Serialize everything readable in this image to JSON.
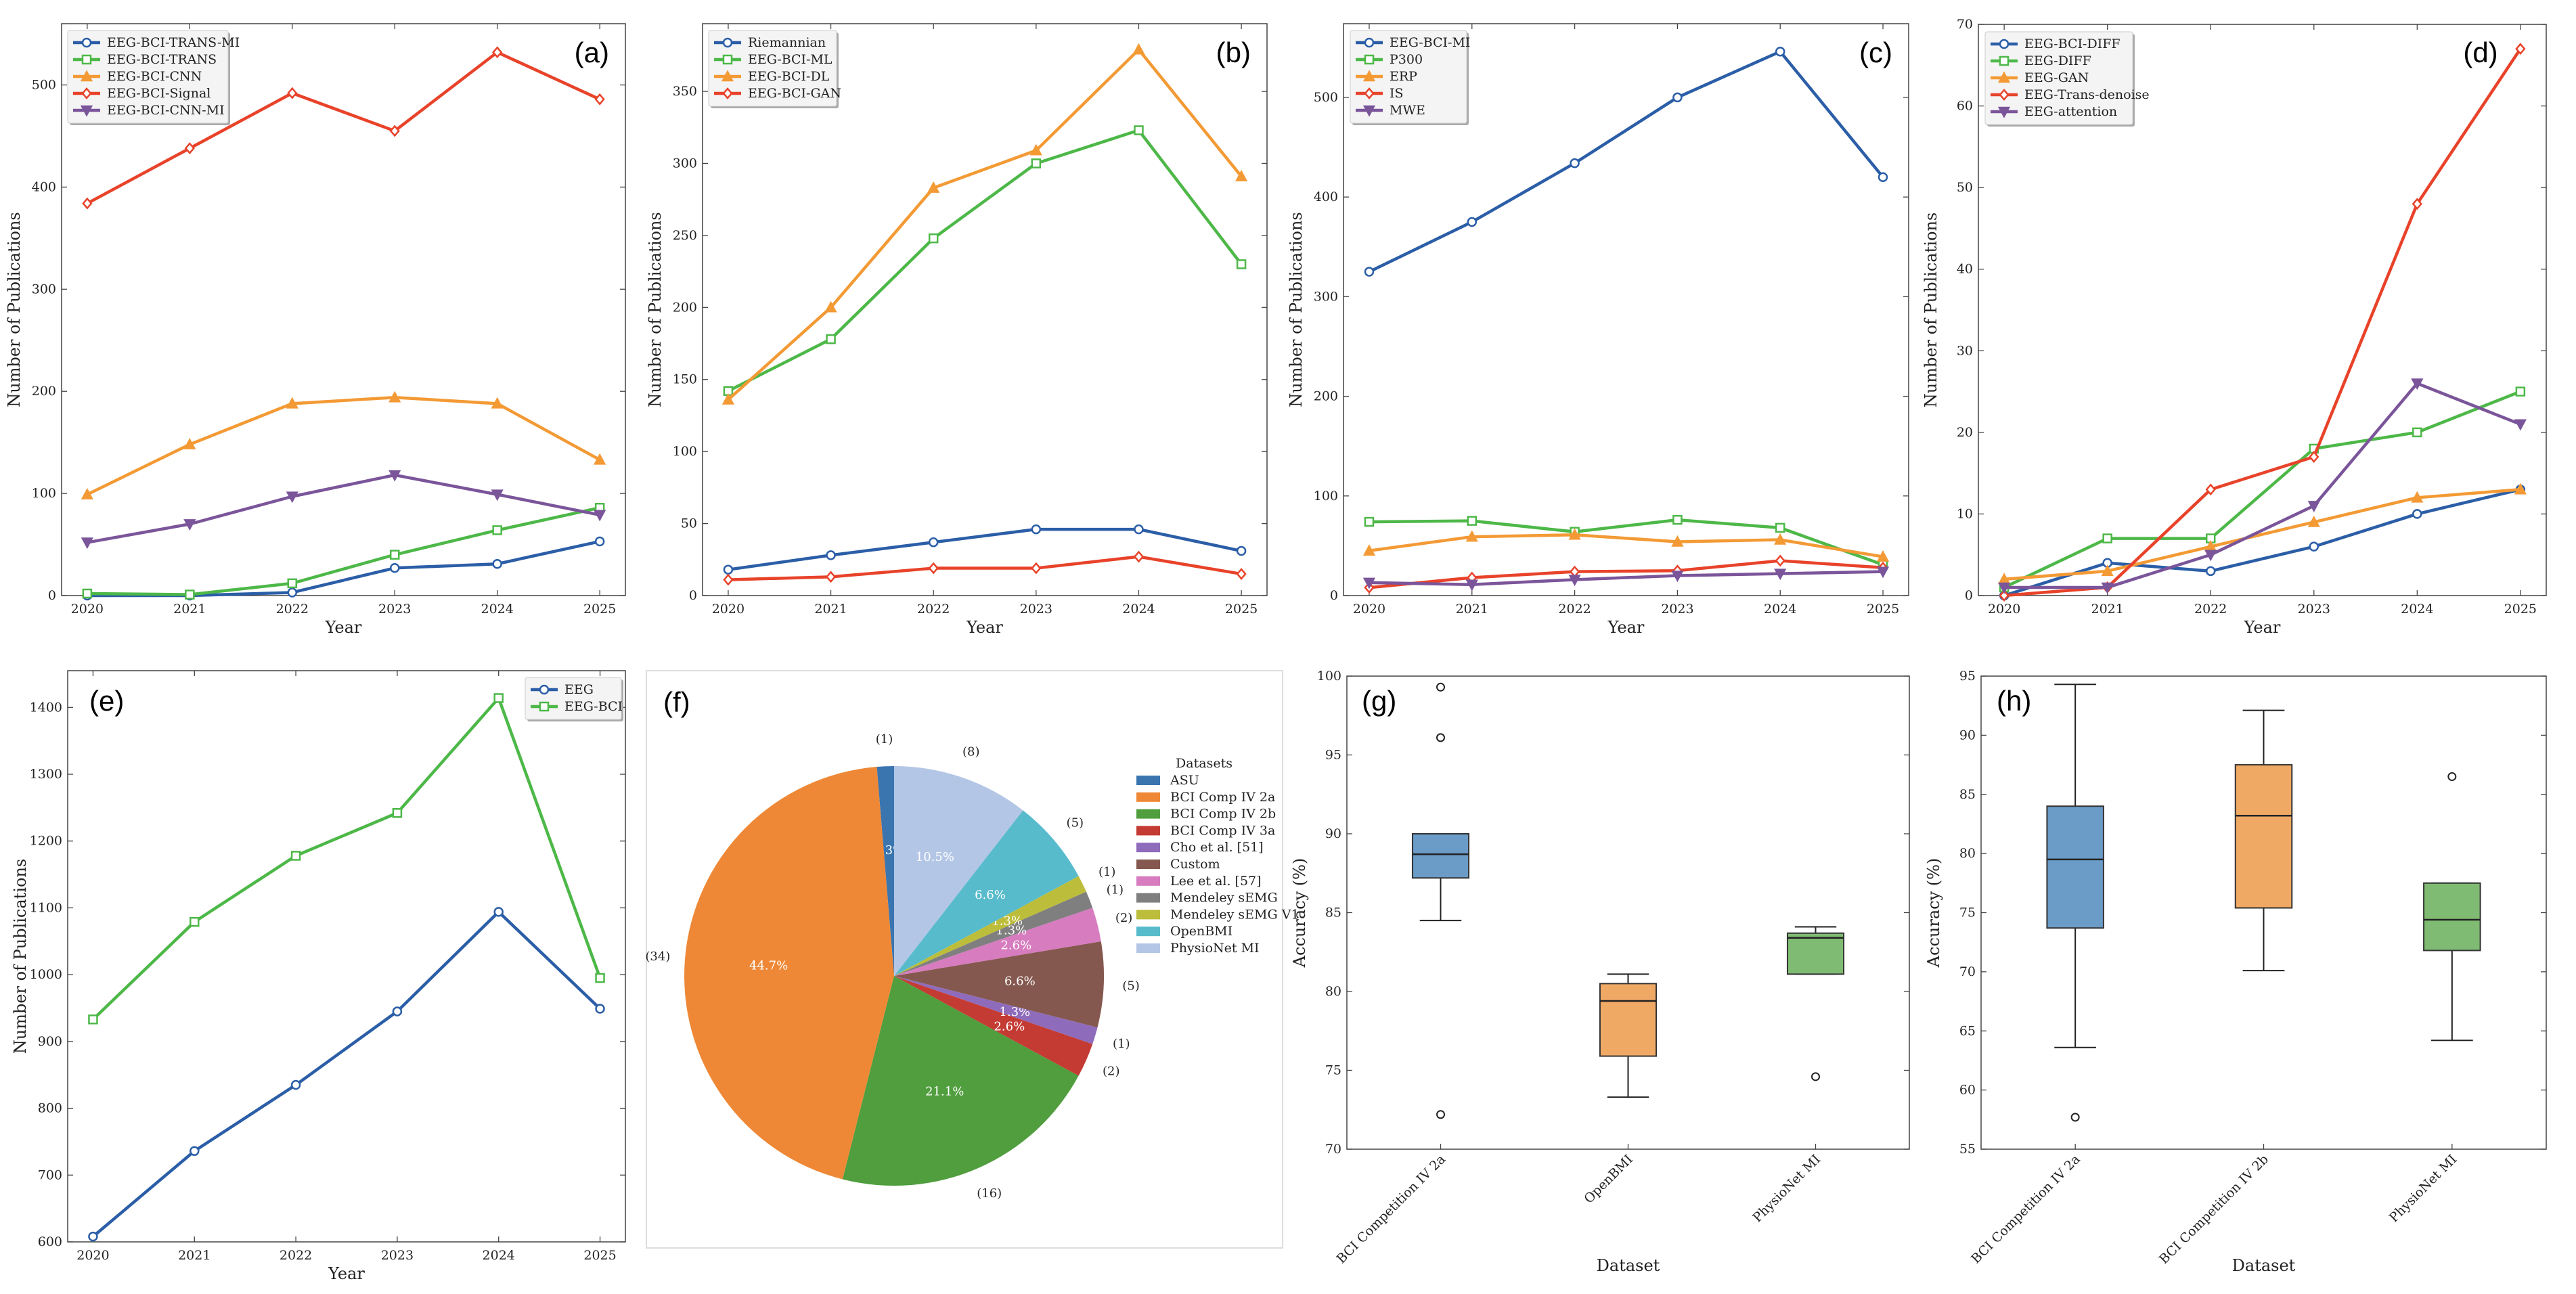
{
  "chart_data": [
    {
      "type": "line",
      "panel_label": "(a)",
      "xlabel": "Year",
      "ylabel": "Number of Publications",
      "x": [
        2020,
        2021,
        2022,
        2023,
        2024,
        2025
      ],
      "xlim": [
        2019.75,
        2025.25
      ],
      "ylim": [
        0,
        560
      ],
      "yticks": [
        0,
        100,
        200,
        300,
        400,
        500
      ],
      "legend": "top-left",
      "series": [
        {
          "name": "EEG-BCI-TRANS-MI",
          "color": "#2b5ea7",
          "marker": "circle",
          "values": [
            0,
            0,
            3,
            27,
            31,
            53
          ]
        },
        {
          "name": "EEG-BCI-TRANS",
          "color": "#4db848",
          "marker": "square",
          "values": [
            2,
            1,
            12,
            40,
            64,
            86
          ]
        },
        {
          "name": "EEG-BCI-CNN",
          "color": "#f39a35",
          "marker": "triangle-up",
          "values": [
            99,
            148,
            188,
            194,
            188,
            133
          ]
        },
        {
          "name": "EEG-BCI-Signal",
          "color": "#e8432a",
          "marker": "diamond",
          "values": [
            384,
            438,
            492,
            455,
            532,
            486
          ]
        },
        {
          "name": "EEG-BCI-CNN-MI",
          "color": "#7b559a",
          "marker": "triangle-down",
          "values": [
            52,
            70,
            97,
            118,
            99,
            79
          ]
        }
      ]
    },
    {
      "type": "line",
      "panel_label": "(b)",
      "xlabel": "Year",
      "ylabel": "Number of Publications",
      "x": [
        2020,
        2021,
        2022,
        2023,
        2024,
        2025
      ],
      "xlim": [
        2019.75,
        2025.25
      ],
      "ylim": [
        0,
        397
      ],
      "yticks": [
        0,
        50,
        100,
        150,
        200,
        250,
        300,
        350
      ],
      "legend": "top-left",
      "series": [
        {
          "name": "Riemannian",
          "color": "#2b5ea7",
          "marker": "circle",
          "values": [
            18,
            28,
            37,
            46,
            46,
            31
          ]
        },
        {
          "name": "EEG-BCI-ML",
          "color": "#4db848",
          "marker": "square",
          "values": [
            142,
            178,
            248,
            300,
            323,
            230
          ]
        },
        {
          "name": "EEG-BCI-DL",
          "color": "#f39a35",
          "marker": "triangle-up",
          "values": [
            136,
            200,
            283,
            309,
            379,
            291
          ]
        },
        {
          "name": "EEG-BCI-GAN",
          "color": "#e8432a",
          "marker": "diamond",
          "values": [
            11,
            13,
            19,
            19,
            27,
            15
          ]
        }
      ]
    },
    {
      "type": "line",
      "panel_label": "(c)",
      "xlabel": "Year",
      "ylabel": "Number of Publications",
      "x": [
        2020,
        2021,
        2022,
        2023,
        2024,
        2025
      ],
      "xlim": [
        2019.75,
        2025.25
      ],
      "ylim": [
        0,
        574
      ],
      "yticks": [
        0,
        100,
        200,
        300,
        400,
        500
      ],
      "legend": "top-left",
      "series": [
        {
          "name": "EEG-BCI-MI",
          "color": "#2b5ea7",
          "marker": "circle",
          "values": [
            325,
            375,
            434,
            500,
            546,
            420
          ]
        },
        {
          "name": "P300",
          "color": "#4db848",
          "marker": "square",
          "values": [
            74,
            75,
            64,
            76,
            68,
            31
          ]
        },
        {
          "name": "ERP",
          "color": "#f39a35",
          "marker": "triangle-up",
          "values": [
            45,
            59,
            61,
            54,
            56,
            39
          ]
        },
        {
          "name": "IS",
          "color": "#e8432a",
          "marker": "diamond",
          "values": [
            8,
            18,
            24,
            25,
            35,
            28
          ]
        },
        {
          "name": "MWE",
          "color": "#7b559a",
          "marker": "triangle-down",
          "values": [
            13,
            11,
            16,
            20,
            22,
            24
          ]
        }
      ]
    },
    {
      "type": "line",
      "panel_label": "(d)",
      "xlabel": "Year",
      "ylabel": "Number of Publications",
      "x": [
        2020,
        2021,
        2022,
        2023,
        2024,
        2025
      ],
      "xlim": [
        2019.75,
        2025.25
      ],
      "ylim": [
        0,
        70
      ],
      "yticks": [
        0,
        10,
        20,
        30,
        40,
        50,
        60,
        70
      ],
      "legend": "top-left",
      "series": [
        {
          "name": "EEG-BCI-DIFF",
          "color": "#2b5ea7",
          "marker": "circle",
          "values": [
            0,
            4,
            3,
            6,
            10,
            13
          ]
        },
        {
          "name": "EEG-DIFF",
          "color": "#4db848",
          "marker": "square",
          "values": [
            1,
            7,
            7,
            18,
            20,
            25
          ]
        },
        {
          "name": "EEG-GAN",
          "color": "#f39a35",
          "marker": "triangle-up",
          "values": [
            2,
            3,
            6,
            9,
            12,
            13
          ]
        },
        {
          "name": "EEG-Trans-denoise",
          "color": "#e8432a",
          "marker": "diamond",
          "values": [
            0,
            1,
            13,
            17,
            48,
            67
          ]
        },
        {
          "name": "EEG-attention",
          "color": "#7b559a",
          "marker": "triangle-down",
          "values": [
            1,
            1,
            5,
            11,
            26,
            21
          ]
        }
      ]
    },
    {
      "type": "line",
      "panel_label": "(e)",
      "xlabel": "Year",
      "ylabel": "Number of Publications",
      "x": [
        2020,
        2021,
        2022,
        2023,
        2024,
        2025
      ],
      "xlim": [
        2019.75,
        2025.25
      ],
      "ylim": [
        600,
        1455
      ],
      "yticks": [
        600,
        700,
        800,
        900,
        1000,
        1100,
        1200,
        1300,
        1400
      ],
      "legend": "top-right",
      "series": [
        {
          "name": "EEG",
          "color": "#2b5ea7",
          "marker": "circle",
          "values": [
            608,
            736,
            835,
            945,
            1094,
            949
          ]
        },
        {
          "name": "EEG-BCI",
          "color": "#4db848",
          "marker": "square",
          "values": [
            933,
            1079,
            1178,
            1242,
            1414,
            995
          ]
        }
      ]
    },
    {
      "type": "pie",
      "panel_label": "(f)",
      "legend_title": "Datasets",
      "legend": "right",
      "start_angle": 90,
      "direction": "counterclockwise",
      "categories": [
        "ASU",
        "BCI Comp IV 2a",
        "BCI Comp IV 2b",
        "BCI Comp IV 3a",
        "Cho et al. [51]",
        "Custom",
        "Lee et al. [57]",
        "Mendeley sEMG",
        "Mendeley sEMG V1",
        "OpenBMI",
        "PhysioNet MI"
      ],
      "values": [
        1,
        34,
        16,
        2,
        1,
        5,
        2,
        1,
        1,
        5,
        8
      ],
      "pct_labels": [
        "1.3%",
        "44.7%",
        "21.1%",
        "2.6%",
        "1.3%",
        "6.6%",
        "2.6%",
        "1.3%",
        "1.3%",
        "6.6%",
        "10.5%"
      ],
      "count_labels": [
        "(1)",
        "(34)",
        "(16)",
        "(2)",
        "(1)",
        "(5)",
        "(2)",
        "(1)",
        "(1)",
        "(5)",
        "(8)"
      ],
      "colors": [
        "#3a75b0",
        "#ee8836",
        "#509e3e",
        "#c43b33",
        "#8f6bbb",
        "#85584f",
        "#d67cbf",
        "#7f7f7f",
        "#bcbd3a",
        "#57bbcc",
        "#b3c6e6"
      ]
    },
    {
      "type": "box",
      "panel_label": "(g)",
      "xlabel": "Dataset",
      "ylabel": "Accuracy (%)",
      "ylim": [
        70,
        100
      ],
      "yticks": [
        70,
        75,
        80,
        85,
        90,
        95,
        100
      ],
      "categories": [
        "BCI Competition IV 2a",
        "OpenBMI",
        "PhysioNet MI"
      ],
      "boxes": [
        {
          "whisker_low": 84.5,
          "q1": 87.2,
          "median": 88.7,
          "q3": 90.0,
          "whisker_high": 90.0,
          "outliers": [
            99.3,
            96.1,
            72.2
          ],
          "color": "#6b9bc7"
        },
        {
          "whisker_low": 73.3,
          "q1": 75.9,
          "median": 79.4,
          "q3": 80.5,
          "whisker_high": 81.1,
          "outliers": [],
          "color": "#f0a965"
        },
        {
          "whisker_low": 81.1,
          "q1": 81.1,
          "median": 83.4,
          "q3": 83.7,
          "whisker_high": 84.1,
          "outliers": [
            74.6
          ],
          "color": "#7fbb72"
        }
      ]
    },
    {
      "type": "box",
      "panel_label": "(h)",
      "xlabel": "Dataset",
      "ylabel": "Accuracy (%)",
      "ylim": [
        55,
        95
      ],
      "yticks": [
        55,
        60,
        65,
        70,
        75,
        80,
        85,
        90,
        95
      ],
      "categories": [
        "BCI Competition IV 2a",
        "BCI Competition IV 2b",
        "PhysioNet MI"
      ],
      "boxes": [
        {
          "whisker_low": 63.6,
          "q1": 73.7,
          "median": 79.5,
          "q3": 84.0,
          "whisker_high": 94.3,
          "outliers": [
            57.7
          ],
          "color": "#6b9bc7"
        },
        {
          "whisker_low": 70.1,
          "q1": 75.4,
          "median": 83.2,
          "q3": 87.5,
          "whisker_high": 92.1,
          "outliers": [],
          "color": "#f0a965"
        },
        {
          "whisker_low": 64.2,
          "q1": 71.8,
          "median": 74.4,
          "q3": 77.5,
          "whisker_high": 77.5,
          "outliers": [
            86.5
          ],
          "color": "#7fbb72"
        }
      ]
    }
  ]
}
